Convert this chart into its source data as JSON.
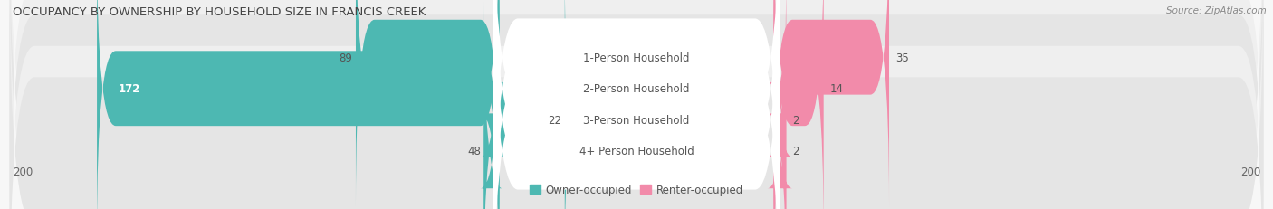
{
  "title": "OCCUPANCY BY OWNERSHIP BY HOUSEHOLD SIZE IN FRANCIS CREEK",
  "source": "Source: ZipAtlas.com",
  "categories": [
    "1-Person Household",
    "2-Person Household",
    "3-Person Household",
    "4+ Person Household"
  ],
  "owner_values": [
    89,
    172,
    22,
    48
  ],
  "renter_values": [
    35,
    14,
    2,
    2
  ],
  "max_scale": 200,
  "owner_color": "#4db8b2",
  "renter_color": "#f28baa",
  "row_bg_colors": [
    "#efefef",
    "#e5e5e5",
    "#efefef",
    "#e5e5e5"
  ],
  "title_fontsize": 9.5,
  "source_fontsize": 7.5,
  "bar_label_fontsize": 8.5,
  "legend_fontsize": 8.5,
  "axis_label_fontsize": 8.5,
  "figsize": [
    14.06,
    2.32
  ],
  "dpi": 100
}
